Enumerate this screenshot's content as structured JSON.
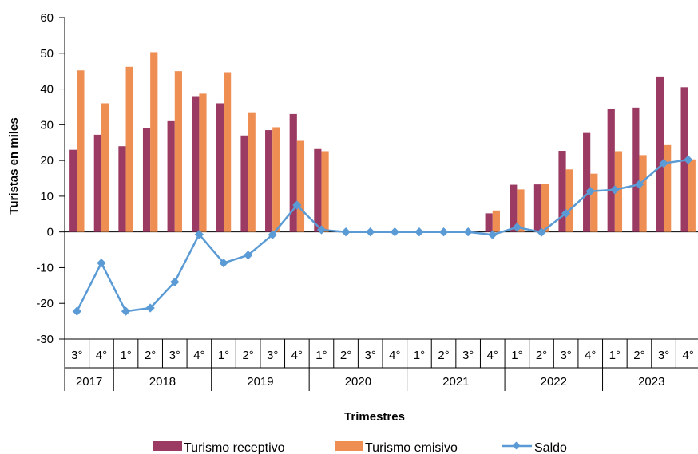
{
  "colors": {
    "receptivo": "#9b3b63",
    "emisivo": "#ee8e52",
    "saldo": "#5b9bd5",
    "axis": "#000000"
  },
  "chart_data": {
    "type": "bar",
    "xlabel": "Trimestres",
    "ylabel": "Turistas en miles",
    "ylim": [
      -30,
      60
    ],
    "yticks": [
      -30,
      -20,
      -10,
      0,
      10,
      20,
      30,
      40,
      50,
      60
    ],
    "quarters": [
      "3°",
      "4°",
      "1°",
      "2°",
      "3°",
      "4°",
      "1°",
      "2°",
      "3°",
      "4°",
      "1°",
      "2°",
      "3°",
      "4°",
      "1°",
      "2°",
      "3°",
      "4°",
      "1°",
      "2°",
      "3°",
      "4°",
      "1°",
      "2°",
      "3°",
      "4°"
    ],
    "years": [
      {
        "label": "2017",
        "count": 2
      },
      {
        "label": "2018",
        "count": 4
      },
      {
        "label": "2019",
        "count": 4
      },
      {
        "label": "2020",
        "count": 4
      },
      {
        "label": "2021",
        "count": 4
      },
      {
        "label": "2022",
        "count": 4
      },
      {
        "label": "2023",
        "count": 4
      }
    ],
    "series": [
      {
        "name": "Turismo receptivo",
        "kind": "bar",
        "values": [
          23,
          27.2,
          24,
          29,
          31,
          38,
          36,
          27,
          28.5,
          33,
          23.2,
          0,
          0,
          0,
          0,
          0,
          0,
          5.2,
          13.2,
          13.3,
          22.7,
          27.7,
          34.4,
          34.8,
          43.5,
          40.5
        ]
      },
      {
        "name": "Turismo emisivo",
        "kind": "bar",
        "values": [
          45.2,
          36,
          46.2,
          50.3,
          45,
          38.7,
          44.7,
          33.5,
          29.3,
          25.5,
          22.6,
          0,
          0,
          0,
          0,
          0,
          0,
          6,
          11.9,
          13.4,
          17.5,
          16.3,
          22.6,
          21.5,
          24.3,
          20.3
        ]
      },
      {
        "name": "Saldo",
        "kind": "line",
        "values": [
          -22.2,
          -8.7,
          -22.2,
          -21.3,
          -14,
          -0.7,
          -8.7,
          -6.5,
          -0.8,
          7.5,
          0.6,
          0,
          0,
          0,
          0,
          0,
          0,
          -0.8,
          1.3,
          -0.1,
          5.2,
          11.4,
          11.8,
          13.3,
          19.2,
          20.2
        ]
      }
    ]
  }
}
